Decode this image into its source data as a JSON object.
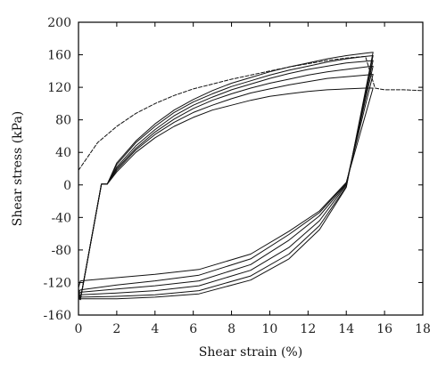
{
  "chart_data": {
    "type": "line",
    "title": "",
    "xlabel": "Shear strain (%)",
    "ylabel": "Shear stress (kPa)",
    "xlim": [
      0,
      18
    ],
    "ylim": [
      -160,
      200
    ],
    "xticks": [
      0,
      2,
      4,
      6,
      8,
      10,
      12,
      14,
      16,
      18
    ],
    "yticks": [
      -160,
      -120,
      -80,
      -40,
      0,
      40,
      80,
      120,
      160,
      200
    ],
    "grid": false,
    "legend": "none",
    "series": [
      {
        "style": "dashed",
        "x": [
          0,
          0.5,
          1,
          2,
          3,
          4,
          5,
          6,
          7,
          8,
          9,
          10,
          11,
          12,
          13,
          14,
          15,
          15.5,
          16,
          17,
          18
        ],
        "y": [
          18,
          35,
          52,
          72,
          88,
          100,
          110,
          118,
          124,
          130,
          135,
          140,
          145,
          149,
          153,
          156,
          158,
          119,
          117,
          117,
          116
        ]
      },
      {
        "style": "solid",
        "x": [
          15.4,
          14.0,
          12.6,
          11.0,
          9.0,
          6.3,
          4.0,
          2.0,
          0.1,
          0.0,
          0.1,
          1.2,
          1.5,
          2,
          3,
          4,
          5,
          6,
          7,
          8,
          9,
          10,
          11,
          12,
          13,
          14,
          15,
          15.4
        ],
        "y": [
          119,
          3,
          -32,
          -57,
          -85,
          -104,
          -110,
          -114,
          -118,
          -127,
          -141,
          1,
          1,
          16,
          40,
          58,
          72,
          83,
          92,
          98,
          104,
          109,
          112,
          115,
          117,
          118,
          119,
          119
        ]
      },
      {
        "style": "solid",
        "x": [
          15.4,
          14.0,
          12.6,
          11.0,
          9.0,
          6.3,
          4.0,
          2.0,
          0.1,
          0.0,
          0.1,
          1.2,
          1.5,
          2,
          3,
          4,
          5,
          6,
          7,
          8,
          9,
          10,
          11,
          12,
          13,
          14,
          15,
          15.4
        ],
        "y": [
          136,
          2,
          -34,
          -61,
          -91,
          -111,
          -118,
          -123,
          -129,
          -133,
          -141,
          1,
          1,
          18,
          43,
          62,
          77,
          89,
          98,
          106,
          113,
          118,
          123,
          127,
          131,
          133,
          135,
          136
        ]
      },
      {
        "style": "solid",
        "x": [
          15.4,
          14.0,
          12.6,
          11.0,
          9.0,
          6.3,
          4.0,
          2.0,
          0.1,
          0.0,
          0.1,
          1.2,
          1.5,
          2,
          3,
          4,
          5,
          6,
          7,
          8,
          9,
          10,
          11,
          12,
          13,
          14,
          15,
          15.4
        ],
        "y": [
          146,
          1,
          -38,
          -68,
          -98,
          -118,
          -124,
          -128,
          -132,
          -135,
          -141,
          1,
          1,
          20,
          45,
          65,
          81,
          94,
          104,
          112,
          119,
          125,
          130,
          135,
          139,
          142,
          145,
          146
        ]
      },
      {
        "style": "solid",
        "x": [
          15.4,
          14.0,
          12.6,
          11.0,
          9.0,
          6.3,
          4.0,
          2.0,
          0.1,
          0.0,
          0.1,
          1.2,
          1.5,
          2,
          3,
          4,
          5,
          6,
          7,
          8,
          9,
          10,
          11,
          12,
          13,
          14,
          15,
          15.4
        ],
        "y": [
          153,
          0,
          -44,
          -77,
          -105,
          -124,
          -130,
          -133,
          -135,
          -137,
          -141,
          1,
          1,
          22,
          48,
          68,
          85,
          98,
          108,
          117,
          124,
          131,
          137,
          142,
          146,
          150,
          152,
          153
        ]
      },
      {
        "style": "solid",
        "x": [
          15.4,
          14.0,
          12.6,
          11.0,
          9.0,
          6.3,
          4.0,
          2.0,
          0.1,
          0.0,
          0.1,
          1.2,
          1.5,
          2,
          3,
          4,
          5,
          6,
          7,
          8,
          9,
          10,
          11,
          12,
          13,
          14,
          15,
          15.4
        ],
        "y": [
          159,
          -2,
          -50,
          -85,
          -112,
          -130,
          -135,
          -137,
          -138,
          -139,
          -141,
          1,
          1,
          25,
          52,
          72,
          89,
          102,
          112,
          121,
          128,
          135,
          141,
          146,
          151,
          155,
          158,
          159
        ]
      },
      {
        "style": "solid",
        "x": [
          15.4,
          14.0,
          12.6,
          11.0,
          9.0,
          6.3,
          4.0,
          2.0,
          0.1,
          0.0,
          0.1,
          1.2,
          1.5,
          2,
          3,
          4,
          5,
          6,
          7,
          8,
          9,
          10,
          11,
          12,
          13,
          14,
          15,
          15.4
        ],
        "y": [
          163,
          -3,
          -55,
          -91,
          -117,
          -134,
          -138,
          -140,
          -140,
          -140,
          -141,
          1,
          1,
          27,
          54,
          75,
          92,
          105,
          116,
          125,
          132,
          139,
          145,
          150,
          155,
          159,
          162,
          163
        ]
      }
    ]
  }
}
